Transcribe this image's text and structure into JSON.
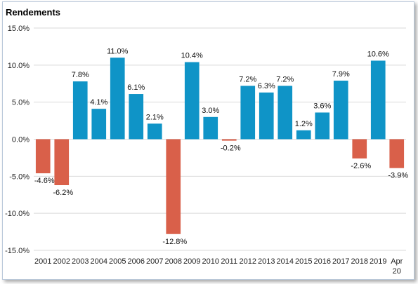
{
  "chart_data": {
    "type": "bar",
    "title": "Rendements",
    "xlabel": "",
    "ylabel": "",
    "ylim": [
      -15,
      15
    ],
    "yticks": [
      -15,
      -10,
      -5,
      0,
      5,
      10,
      15
    ],
    "ytick_labels": [
      "-15.0%",
      "-10.0%",
      "-5.0%",
      "0.0%",
      "5.0%",
      "10.0%",
      "15.0%"
    ],
    "grid": true,
    "legend": "none",
    "categories": [
      "2001",
      "2002",
      "2003",
      "2004",
      "2005",
      "2006",
      "2007",
      "2008",
      "2009",
      "2010",
      "2011",
      "2012",
      "2013",
      "2014",
      "2015",
      "2016",
      "2017",
      "2018",
      "2019",
      "Apr 20"
    ],
    "values": [
      -4.6,
      -6.2,
      7.8,
      4.1,
      11.0,
      6.1,
      2.1,
      -12.8,
      10.4,
      3.0,
      -0.2,
      7.2,
      6.3,
      7.2,
      1.2,
      3.6,
      7.9,
      -2.6,
      10.6,
      -3.9
    ],
    "data_labels": [
      "-4.6%",
      "-6.2%",
      "7.8%",
      "4.1%",
      "11.0%",
      "6.1%",
      "2.1%",
      "-12.8%",
      "10.4%",
      "3.0%",
      "-0.2%",
      "7.2%",
      "6.3%",
      "7.2%",
      "1.2%",
      "3.6%",
      "7.9%",
      "-2.6%",
      "10.6%",
      "-3.9%"
    ],
    "colors": {
      "positive": "#0f94c7",
      "negative": "#d9604a",
      "grid": "#d9d9d9"
    }
  }
}
